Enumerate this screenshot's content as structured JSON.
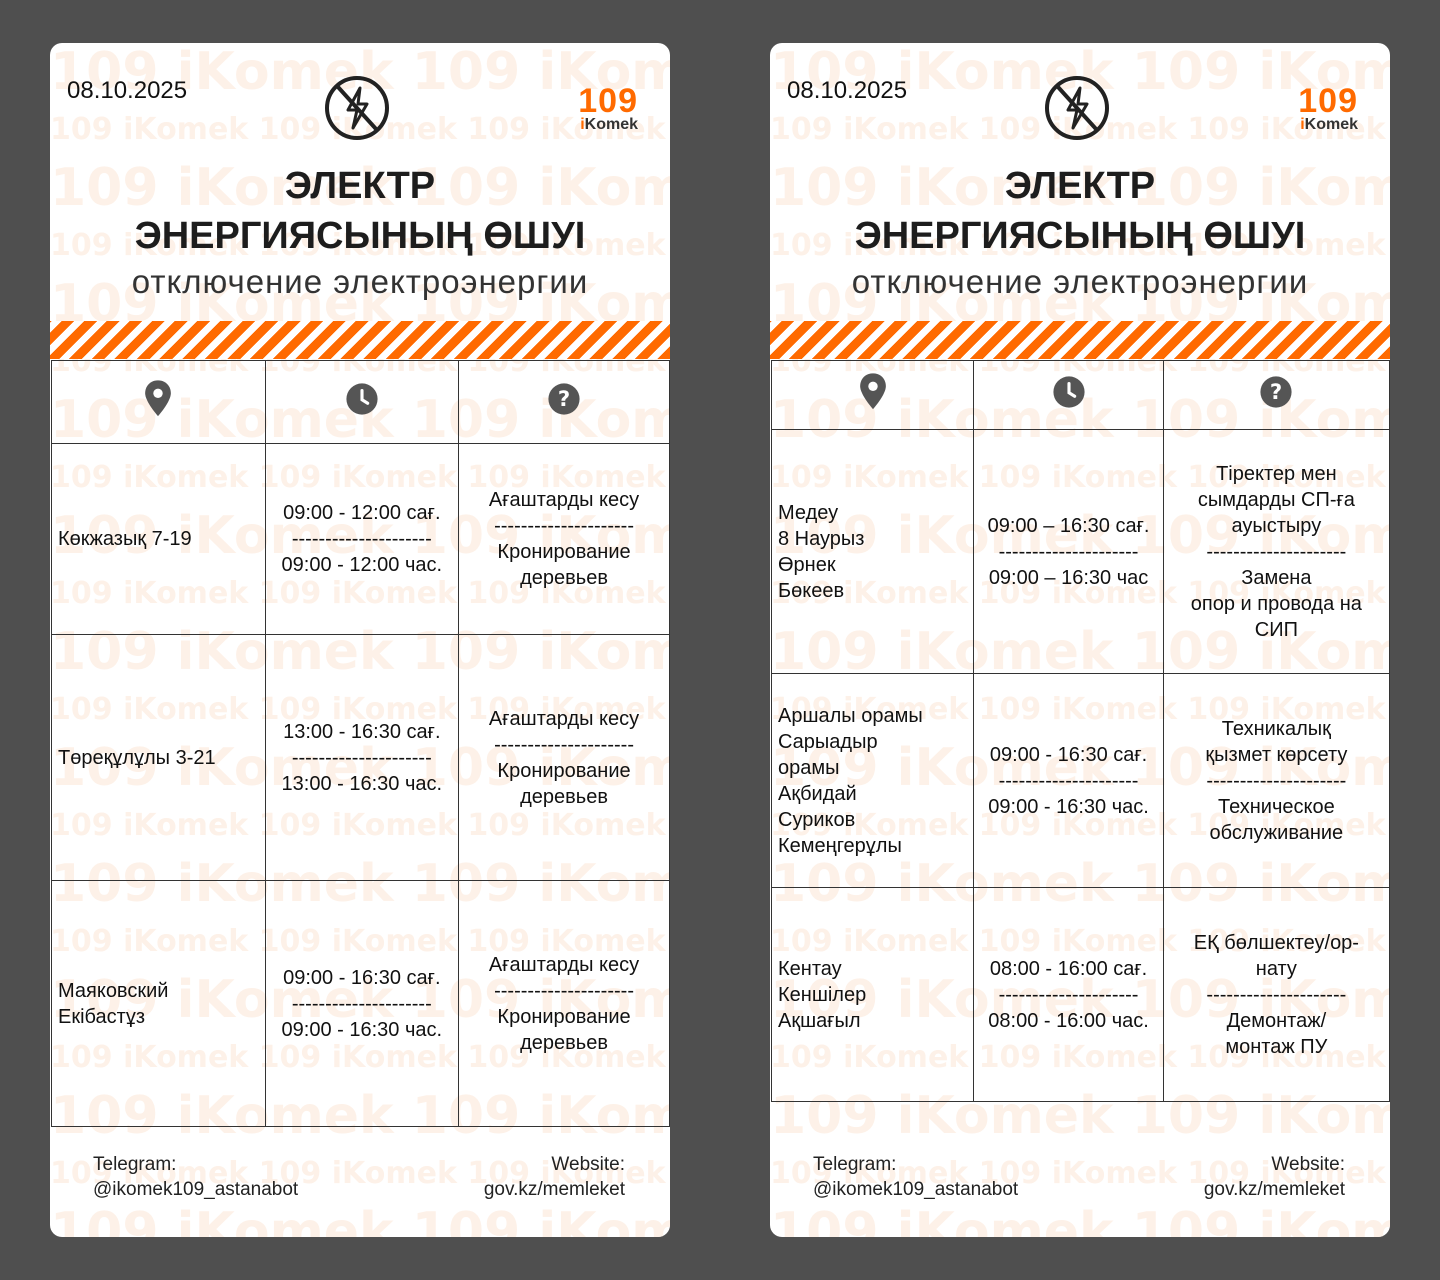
{
  "watermark": "109 iKomek",
  "colors": {
    "accent": "#ff6a00",
    "background": "#4f4f4f"
  },
  "separator": "---------------------",
  "cards": [
    {
      "date": "08.10.2025",
      "logo": {
        "number": "109",
        "brand_i": "i",
        "brand": "Komek"
      },
      "title_line1": "ЭЛЕКТР",
      "title_line2": "ЭНЕРГИЯСЫНЫҢ ӨШУІ",
      "subtitle": "отключение электроэнергии",
      "header_icons": [
        "location-pin-icon",
        "clock-icon",
        "question-icon"
      ],
      "rows": [
        {
          "address": [
            "Көкжазық 7-19"
          ],
          "time_kz": "09:00 - 12:00 сағ.",
          "time_ru": "09:00 - 12:00 час.",
          "reason_kz": [
            "Ағаштарды кесу"
          ],
          "reason_ru": [
            "Кронирование",
            "деревьев"
          ]
        },
        {
          "address": [
            "Төреқұлұлы 3-21"
          ],
          "time_kz": "13:00 - 16:30 сағ.",
          "time_ru": "13:00 - 16:30 час.",
          "reason_kz": [
            "Ағаштарды кесу"
          ],
          "reason_ru": [
            "Кронирование",
            "деревьев"
          ]
        },
        {
          "address": [
            "Маяковский",
            "Екібастұз"
          ],
          "time_kz": "09:00 - 16:30 сағ.",
          "time_ru": "09:00 - 16:30 час.",
          "reason_kz": [
            "Ағаштарды кесу"
          ],
          "reason_ru": [
            "Кронирование",
            "деревьев"
          ]
        }
      ],
      "footer": {
        "telegram_label": "Telegram:",
        "telegram": "@ikomek109_astanabot",
        "website_label": "Website:",
        "website": "gov.kz/memleket"
      }
    },
    {
      "date": "08.10.2025",
      "logo": {
        "number": "109",
        "brand_i": "i",
        "brand": "Komek"
      },
      "title_line1": "ЭЛЕКТР",
      "title_line2": "ЭНЕРГИЯСЫНЫҢ ӨШУІ",
      "subtitle": "отключение электроэнергии",
      "header_icons": [
        "location-pin-icon",
        "clock-icon",
        "question-icon"
      ],
      "rows": [
        {
          "address": [
            "Медеу",
            "8 Наурыз",
            "Өрнек",
            "Бөкеев"
          ],
          "time_kz": "09:00 – 16:30 сағ.",
          "time_ru": "09:00 – 16:30 час",
          "reason_kz": [
            "Тіректер мен",
            "сымдарды СП-ға",
            "ауыстыру"
          ],
          "reason_ru": [
            "Замена",
            "опор и провода на",
            "СИП"
          ]
        },
        {
          "address": [
            "Аршалы орамы",
            "Сарыадыр",
            "орамы",
            "Ақбидай",
            "Суриков",
            "Кемеңгерұлы"
          ],
          "time_kz": "09:00 - 16:30 сағ.",
          "time_ru": "09:00 - 16:30 час.",
          "reason_kz": [
            "Техникалық",
            "қызмет көрсету"
          ],
          "reason_ru": [
            "Техническое",
            "обслуживание"
          ]
        },
        {
          "address": [
            "Кентау",
            "Кеншілер",
            "Ақшағыл"
          ],
          "time_kz": "08:00 - 16:00 сағ.",
          "time_ru": "08:00 - 16:00 час.",
          "reason_kz": [
            "ЕҚ бөлшектеу/ор-",
            "нату"
          ],
          "reason_ru": [
            "Демонтаж/",
            "монтаж ПУ"
          ]
        }
      ],
      "footer": {
        "telegram_label": "Telegram:",
        "telegram": "@ikomek109_astanabot",
        "website_label": "Website:",
        "website": "gov.kz/memleket"
      }
    }
  ]
}
